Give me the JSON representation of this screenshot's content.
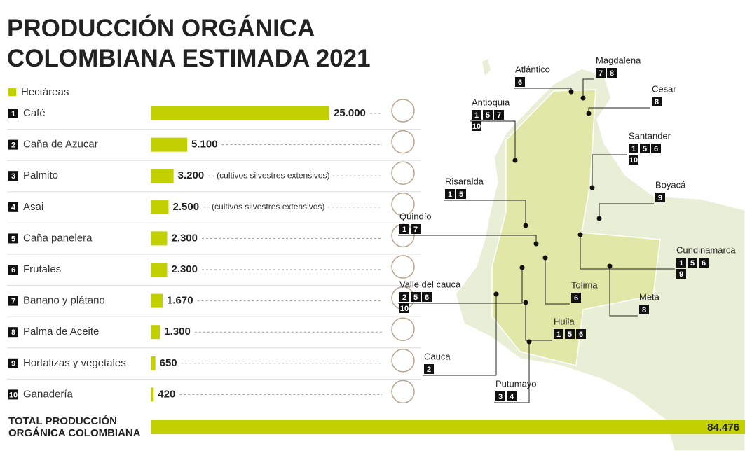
{
  "chart_data": {
    "type": "bar",
    "title": [
      "PRODUCCIÓN ORGÁNICA",
      "COLOMBIANA ESTIMADA  2021"
    ],
    "legend": "Hectáreas",
    "color": "#c3d000",
    "ranks": [
      1,
      2,
      3,
      4,
      5,
      6,
      7,
      8,
      9,
      10
    ],
    "categories": [
      "Café",
      "Caña de Azucar",
      "Palmito",
      "Asai",
      "Caña panelera",
      "Frutales",
      "Banano y plátano",
      "Palma de Aceite",
      "Hortalizas y vegetales",
      "Ganadería"
    ],
    "values": [
      25000,
      5100,
      3200,
      2500,
      2300,
      2300,
      1670,
      1300,
      650,
      420
    ],
    "value_labels": [
      "25.000",
      "5.100",
      "3.200",
      "2.500",
      "2.300",
      "2.300",
      "1.670",
      "1.300",
      "650",
      "420"
    ],
    "notes": [
      null,
      null,
      "(cultivos silvestres extensivos)",
      "(cultivos silvestres extensivos)",
      null,
      null,
      null,
      null,
      null,
      null
    ],
    "xlim": [
      0,
      25000
    ],
    "total_label": [
      "TOTAL PRODUCCIÓN",
      "ORGÁNICA COLOMBIANA"
    ],
    "total": 84476,
    "total_value_label": "84.476"
  },
  "map": {
    "labels": [
      {
        "name": "Atlántico",
        "codes": [
          6
        ]
      },
      {
        "name": "Magdalena",
        "codes": [
          7,
          8
        ]
      },
      {
        "name": "Cesar",
        "codes": [
          8
        ]
      },
      {
        "name": "Antioquia",
        "codes": [
          1,
          5,
          7,
          10
        ]
      },
      {
        "name": "Santander",
        "codes": [
          1,
          5,
          6,
          10
        ]
      },
      {
        "name": "Boyacá",
        "codes": [
          9
        ]
      },
      {
        "name": "Risaralda",
        "codes": [
          1,
          5
        ]
      },
      {
        "name": "Quindío",
        "codes": [
          1,
          7
        ]
      },
      {
        "name": "Cundinamarca",
        "codes": [
          1,
          5,
          6,
          9
        ]
      },
      {
        "name": "Valle del cauca",
        "codes": [
          2,
          5,
          6,
          10
        ]
      },
      {
        "name": "Tolima",
        "codes": [
          6
        ]
      },
      {
        "name": "Meta",
        "codes": [
          8
        ]
      },
      {
        "name": "Huila",
        "codes": [
          1,
          5,
          6
        ]
      },
      {
        "name": "Cauca",
        "codes": [
          2
        ]
      },
      {
        "name": "Putumayo",
        "codes": [
          3,
          4
        ]
      }
    ]
  }
}
